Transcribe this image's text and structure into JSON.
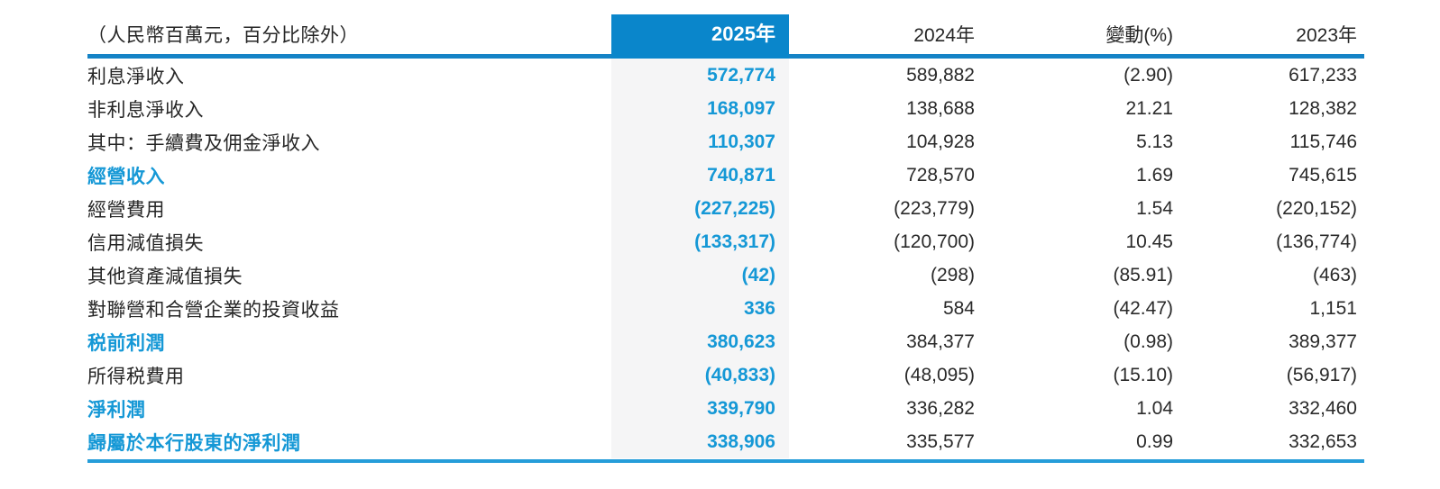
{
  "table": {
    "unit_note": "（人民幣百萬元，百分比除外）",
    "columns": [
      "2025年",
      "2024年",
      "變動(%)",
      "2023年"
    ],
    "rows": [
      {
        "label": "利息淨收入",
        "y2025": "572,774",
        "y2024": "589,882",
        "change": "(2.90)",
        "y2023": "617,233",
        "emphasis": false
      },
      {
        "label": "非利息淨收入",
        "y2025": "168,097",
        "y2024": "138,688",
        "change": "21.21",
        "y2023": "128,382",
        "emphasis": false
      },
      {
        "label": "其中：手續費及佣金淨收入",
        "y2025": "110,307",
        "y2024": "104,928",
        "change": "5.13",
        "y2023": "115,746",
        "emphasis": false
      },
      {
        "label": "經營收入",
        "y2025": "740,871",
        "y2024": "728,570",
        "change": "1.69",
        "y2023": "745,615",
        "emphasis": true
      },
      {
        "label": "經營費用",
        "y2025": "(227,225)",
        "y2024": "(223,779)",
        "change": "1.54",
        "y2023": "(220,152)",
        "emphasis": false
      },
      {
        "label": "信用減值損失",
        "y2025": "(133,317)",
        "y2024": "(120,700)",
        "change": "10.45",
        "y2023": "(136,774)",
        "emphasis": false
      },
      {
        "label": "其他資產減值損失",
        "y2025": "(42)",
        "y2024": "(298)",
        "change": "(85.91)",
        "y2023": "(463)",
        "emphasis": false
      },
      {
        "label": "對聯營和合營企業的投資收益",
        "y2025": "336",
        "y2024": "584",
        "change": "(42.47)",
        "y2023": "1,151",
        "emphasis": false
      },
      {
        "label": "税前利潤",
        "y2025": "380,623",
        "y2024": "384,377",
        "change": "(0.98)",
        "y2023": "389,377",
        "emphasis": true
      },
      {
        "label": "所得税費用",
        "y2025": "(40,833)",
        "y2024": "(48,095)",
        "change": "(15.10)",
        "y2023": "(56,917)",
        "emphasis": false
      },
      {
        "label": "淨利潤",
        "y2025": "339,790",
        "y2024": "336,282",
        "change": "1.04",
        "y2023": "332,460",
        "emphasis": true
      },
      {
        "label": "歸屬於本行股東的淨利潤",
        "y2025": "338,906",
        "y2024": "335,577",
        "change": "0.99",
        "y2023": "332,653",
        "emphasis": true
      }
    ]
  },
  "colors": {
    "accent_blue": "#0a86cb",
    "value_blue": "#1598d6",
    "rule_top": "#1583c6",
    "rule_bottom": "#259dd9",
    "column_highlight_bg": "#f5f5f6",
    "text": "#262626"
  }
}
